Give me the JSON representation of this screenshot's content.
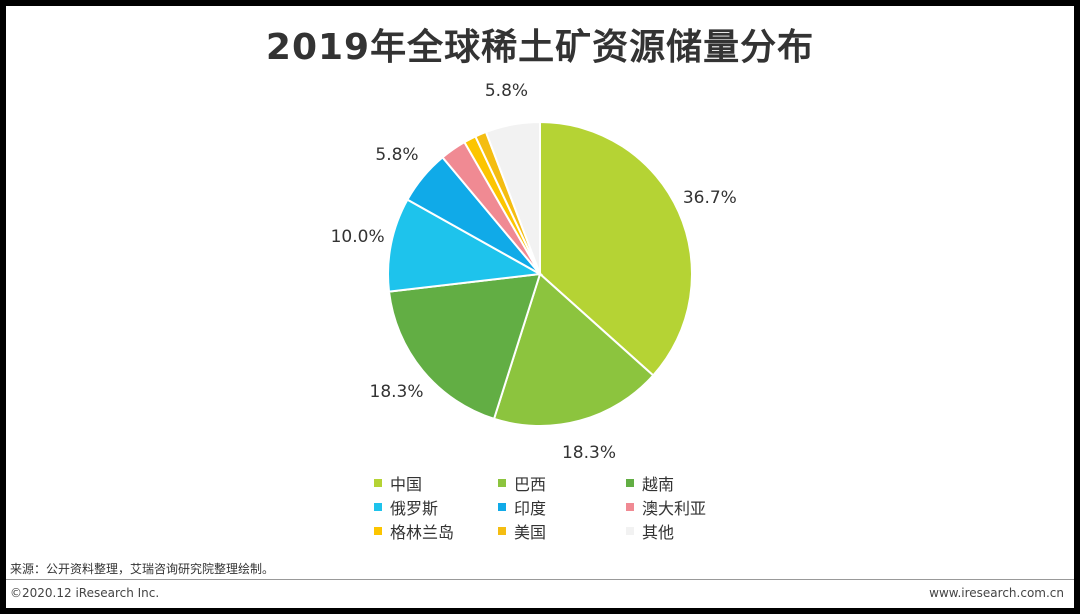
{
  "chart_data": {
    "type": "pie",
    "title": "2019年全球稀土矿资源储量分布",
    "categories": [
      "中国",
      "巴西",
      "越南",
      "俄罗斯",
      "印度",
      "澳大利亚",
      "格林兰岛",
      "美国",
      "其他"
    ],
    "values": [
      36.7,
      18.3,
      18.3,
      10.0,
      5.8,
      2.8,
      1.3,
      1.2,
      5.8
    ],
    "colors": [
      "#b5d334",
      "#8cc43e",
      "#62ae44",
      "#1ec3ec",
      "#10aae8",
      "#f08a93",
      "#fcc500",
      "#f4bd12",
      "#f2f2f2"
    ],
    "data_labels": [
      "36.7%",
      "18.3%",
      "18.3%",
      "10.0%",
      "5.8%",
      "",
      "",
      "",
      "5.8%"
    ],
    "legend_position": "bottom"
  },
  "source_note": "来源：公开资料整理，艾瑞咨询研究院整理绘制。",
  "footer": {
    "copyright": "©2020.12 iResearch Inc.",
    "website": "www.iresearch.com.cn"
  }
}
